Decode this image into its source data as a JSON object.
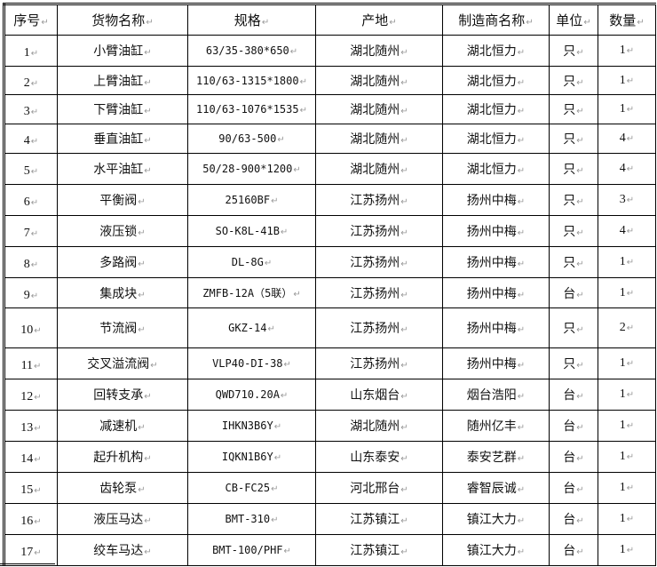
{
  "table": {
    "headers": [
      "序号",
      "货物名称",
      "规格",
      "产地",
      "制造商名称",
      "单位",
      "数量"
    ],
    "rows": [
      [
        "1",
        "小臂油缸",
        "63/35-380*650",
        "湖北随州",
        "湖北恒力",
        "只",
        "1"
      ],
      [
        "2",
        "上臂油缸",
        "110/63-1315*1800",
        "湖北随州",
        "湖北恒力",
        "只",
        "1"
      ],
      [
        "3",
        "下臂油缸",
        "110/63-1076*1535",
        "湖北随州",
        "湖北恒力",
        "只",
        "1"
      ],
      [
        "4",
        "垂直油缸",
        "90/63-500",
        "湖北随州",
        "湖北恒力",
        "只",
        "4"
      ],
      [
        "5",
        "水平油缸",
        "50/28-900*1200",
        "湖北随州",
        "湖北恒力",
        "只",
        "4"
      ],
      [
        "6",
        "平衡阀",
        "25160BF",
        "江苏扬州",
        "扬州中梅",
        "只",
        "3"
      ],
      [
        "7",
        "液压锁",
        "SO-K8L-41B",
        "江苏扬州",
        "扬州中梅",
        "只",
        "4"
      ],
      [
        "8",
        "多路阀",
        "DL-8G",
        "江苏扬州",
        "扬州中梅",
        "只",
        "1"
      ],
      [
        "9",
        "集成块",
        "ZMFB-12A（5联）",
        "江苏扬州",
        "扬州中梅",
        "台",
        "1"
      ],
      [
        "10",
        "节流阀",
        "GKZ-14",
        "江苏扬州",
        "扬州中梅",
        "只",
        "2"
      ],
      [
        "11",
        "交叉溢流阀",
        "VLP40-DI-38",
        "江苏扬州",
        "扬州中梅",
        "只",
        "1"
      ],
      [
        "12",
        "回转支承",
        "QWD710.20A",
        "山东烟台",
        "烟台浩阳",
        "台",
        "1"
      ],
      [
        "13",
        "减速机",
        "IHKN3B6Y",
        "湖北随州",
        "随州亿丰",
        "台",
        "1"
      ],
      [
        "14",
        "起升机构",
        "IQKN1B6Y",
        "山东泰安",
        "泰安艺群",
        "台",
        "1"
      ],
      [
        "15",
        "齿轮泵",
        "CB-FC25",
        "河北邢台",
        "睿智辰诚",
        "台",
        "1"
      ],
      [
        "16",
        "液压马达",
        "BMT-310",
        "江苏镇江",
        "镇江大力",
        "台",
        "1"
      ],
      [
        "17",
        "绞车马达",
        "BMT-100/PHF",
        "江苏镇江",
        "镇江大力",
        "台",
        "1"
      ]
    ]
  }
}
